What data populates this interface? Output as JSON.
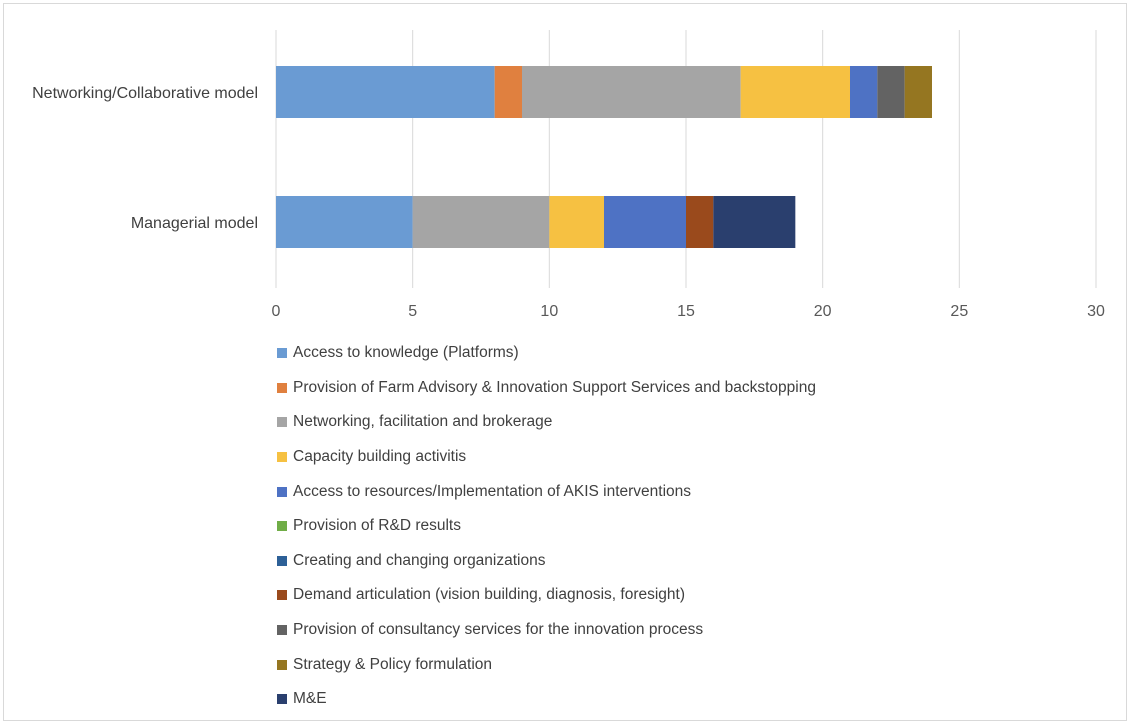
{
  "chart_data": {
    "type": "bar",
    "orientation": "horizontal",
    "stacked": true,
    "title": "",
    "xlabel": "",
    "ylabel": "",
    "xlim": [
      0,
      30
    ],
    "x_ticks": [
      "0",
      "5",
      "10",
      "15",
      "20",
      "25",
      "30"
    ],
    "grid": "vertical",
    "legend_position": "bottom",
    "categories": [
      "Networking/Collaborative model",
      "Managerial model"
    ],
    "series": [
      {
        "name": "Access to knowledge (Platforms)",
        "color": "#6a9bd3",
        "values": [
          8,
          5
        ]
      },
      {
        "name": "Provision of Farm Advisory & Innovation Support Services and backstopping",
        "color": "#e0803f",
        "values": [
          1,
          0
        ]
      },
      {
        "name": "Networking, facilitation and brokerage",
        "color": "#a5a5a5",
        "values": [
          8,
          5
        ]
      },
      {
        "name": "Capacity building activitis",
        "color": "#f6c142",
        "values": [
          4,
          2
        ]
      },
      {
        "name": "Access to resources/Implementation of AKIS interventions",
        "color": "#4e72c4",
        "values": [
          1,
          3
        ]
      },
      {
        "name": "Provision of R&D results",
        "color": "#70ad47",
        "values": [
          0,
          0
        ]
      },
      {
        "name": "Creating and changing organizations",
        "color": "#2d6097",
        "values": [
          0,
          0
        ]
      },
      {
        "name": "Demand articulation (vision  building,  diagnosis, foresight)",
        "color": "#9a4a1c",
        "values": [
          0,
          1
        ]
      },
      {
        "name": "Provision of consultancy services for the innovation process",
        "color": "#636363",
        "values": [
          1,
          0
        ]
      },
      {
        "name": "Strategy & Policy formulation",
        "color": "#957621",
        "values": [
          1,
          0
        ]
      },
      {
        "name": "M&E",
        "color": "#2a3f6e",
        "values": [
          0,
          3
        ]
      }
    ]
  }
}
